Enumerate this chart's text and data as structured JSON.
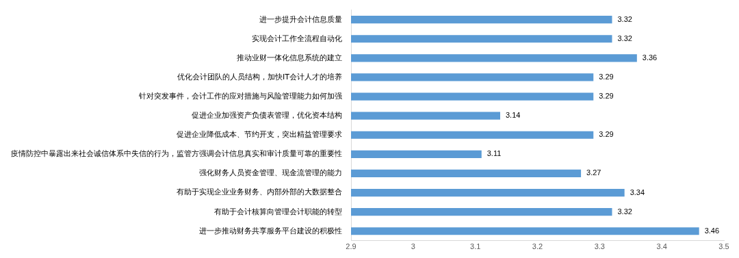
{
  "chart_data": {
    "type": "bar",
    "orientation": "horizontal",
    "categories": [
      "进一步提升会计信息质量",
      "实现会计工作全流程自动化",
      "推动业财一体化信息系统的建立",
      "优化会计团队的人员结构，加快IT会计人才的培养",
      "针对突发事件，会计工作的应对措施与风险管理能力如何加强",
      "促进企业加强资产负债表管理，优化资本结构",
      "促进企业降低成本、节约开支，突出精益管理要求",
      "疫情防控中暴露出来社会诚信体系中失信的行为，监管方强调会计信息真实和审计质量可靠的重要性",
      "强化财务人员资金管理、现金流管理的能力",
      "有助于实现企业业务财务、内部外部的大数据整合",
      "有助于会计核算向管理会计职能的转型",
      "进一步推动财务共享服务平台建设的积极性"
    ],
    "values": [
      3.32,
      3.32,
      3.36,
      3.29,
      3.29,
      3.14,
      3.29,
      3.11,
      3.27,
      3.34,
      3.32,
      3.46
    ],
    "color": "#5b9bd5",
    "xlim": [
      2.9,
      3.5
    ],
    "xticks": [
      2.9,
      3,
      3.1,
      3.2,
      3.3,
      3.4,
      3.5
    ],
    "grid": false,
    "legend": false,
    "data_labels": true
  }
}
